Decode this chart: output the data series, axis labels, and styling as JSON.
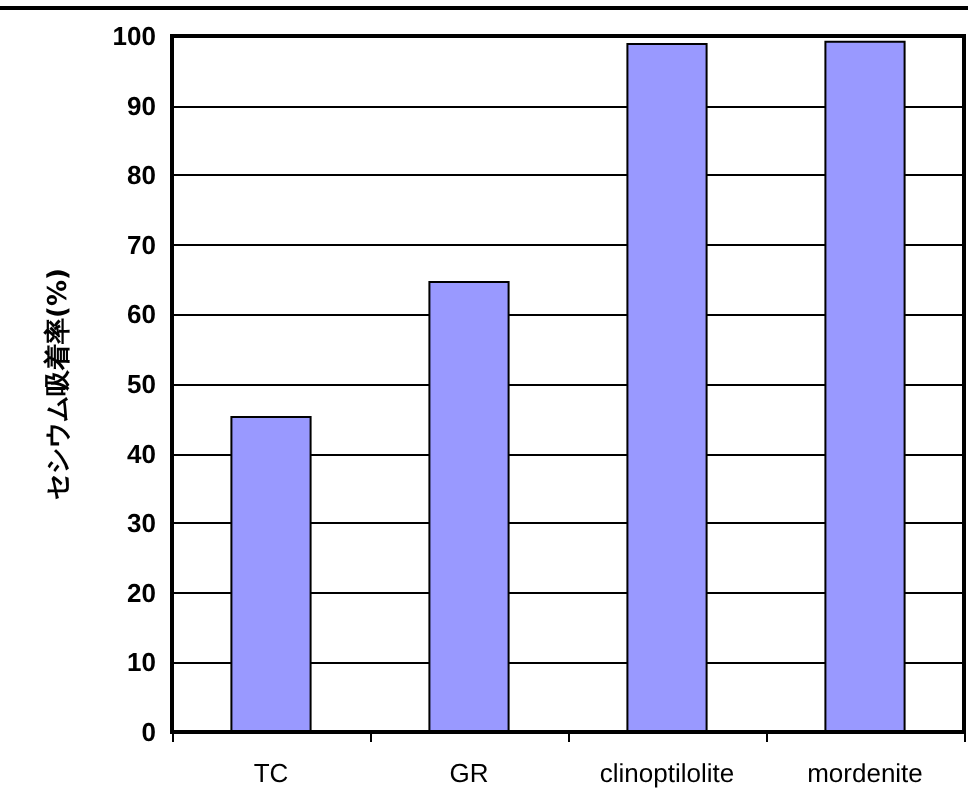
{
  "chart_data": {
    "type": "bar",
    "ylabel": "セシウム吸着率(%)",
    "categories": [
      "TC",
      "GR",
      "clinoptilolite",
      "mordenite"
    ],
    "values": [
      45.4,
      64.8,
      99.0,
      99.3
    ],
    "color": "#9999ff",
    "ylim": [
      0,
      100
    ],
    "yticks": [
      0,
      10,
      20,
      30,
      40,
      50,
      60,
      70,
      80,
      90,
      100
    ],
    "grid": "y"
  }
}
